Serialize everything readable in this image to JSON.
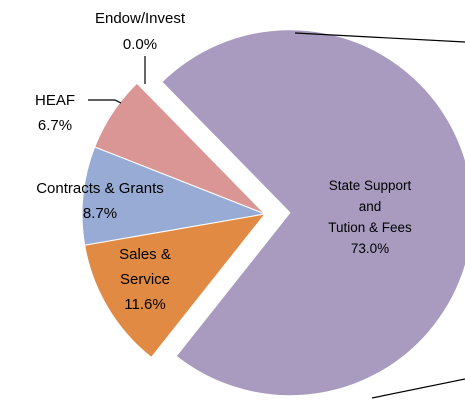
{
  "chart_data": {
    "type": "pie",
    "categories": [
      "State Support\nand\nTution & Fees",
      "Sales &\nService",
      "Contracts & Grants",
      "HEAF",
      "Endow/Invest"
    ],
    "values": [
      73.0,
      11.6,
      8.7,
      6.7,
      0.0
    ],
    "value_labels": [
      "73.0%",
      "11.6%",
      "8.7%",
      "6.7%",
      "0.0%"
    ],
    "colors": [
      "#a89bbf",
      "#e08a43",
      "#97abd4",
      "#d99694",
      "#9bbb59"
    ]
  }
}
